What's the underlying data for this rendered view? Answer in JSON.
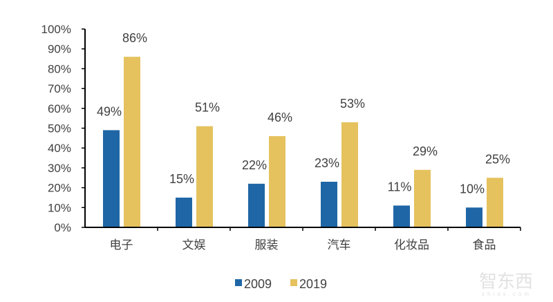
{
  "chart_data": {
    "type": "bar",
    "categories": [
      "电子",
      "文娱",
      "服装",
      "汽车",
      "化妆品",
      "食品"
    ],
    "series": [
      {
        "name": "2009",
        "values": [
          49,
          15,
          22,
          23,
          11,
          10
        ],
        "labels": [
          "49%",
          "15%",
          "22%",
          "23%",
          "11%",
          "10%"
        ],
        "color": "#1f66a6"
      },
      {
        "name": "2019",
        "values": [
          86,
          51,
          46,
          53,
          29,
          25
        ],
        "labels": [
          "86%",
          "51%",
          "46%",
          "53%",
          "29%",
          "25%"
        ],
        "color": "#e5c25e"
      }
    ],
    "ylim": [
      0,
      100
    ],
    "yticks": [
      "0%",
      "10%",
      "20%",
      "30%",
      "40%",
      "50%",
      "60%",
      "70%",
      "80%",
      "90%",
      "100%"
    ],
    "grid": false,
    "legend": "bottom",
    "title": "",
    "xlabel": "",
    "ylabel": ""
  },
  "watermark": {
    "logo": "智东西",
    "site": "zhidx.com"
  }
}
